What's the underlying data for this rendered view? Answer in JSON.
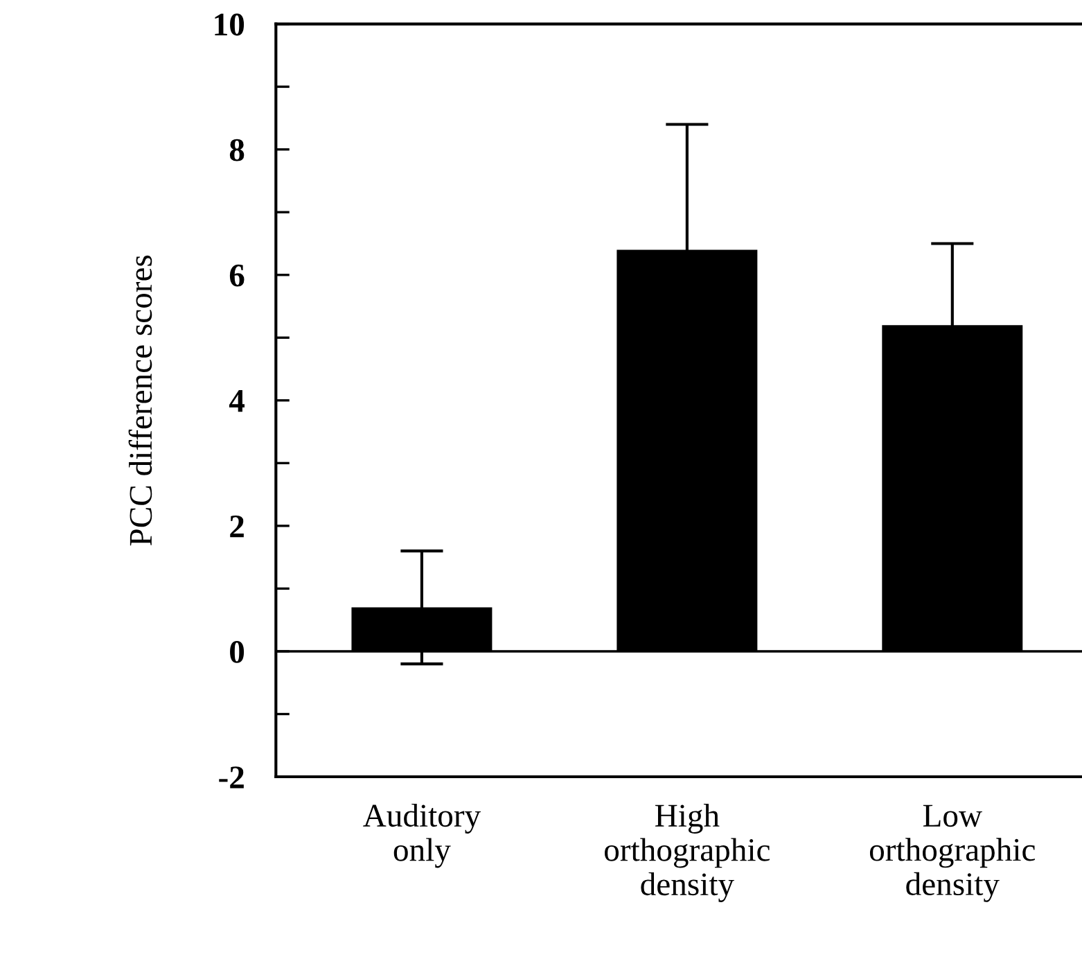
{
  "chart_data": {
    "type": "bar",
    "ylabel": "PCC difference scores",
    "categories": [
      "Auditory\nonly",
      "High\northographic\ndensity",
      "Low\northographic\ndensity"
    ],
    "values": [
      0.7,
      6.4,
      5.2
    ],
    "errors": [
      0.9,
      2.0,
      1.3
    ],
    "color": "#000000",
    "ylim": [
      -2,
      10
    ],
    "yticks": [
      -2,
      {
        "value": -1,
        "label": null
      },
      0,
      {
        "value": 1,
        "label": null
      },
      2,
      {
        "value": 3,
        "label": null
      },
      4,
      {
        "value": 5,
        "label": null
      },
      6,
      {
        "value": 7,
        "label": null
      },
      8,
      {
        "value": 9,
        "label": null
      },
      10
    ],
    "ref_lines": [
      {
        "axis": "y",
        "value": 0,
        "label": null,
        "color": "#000000"
      }
    ],
    "grid": false,
    "legend": false
  }
}
